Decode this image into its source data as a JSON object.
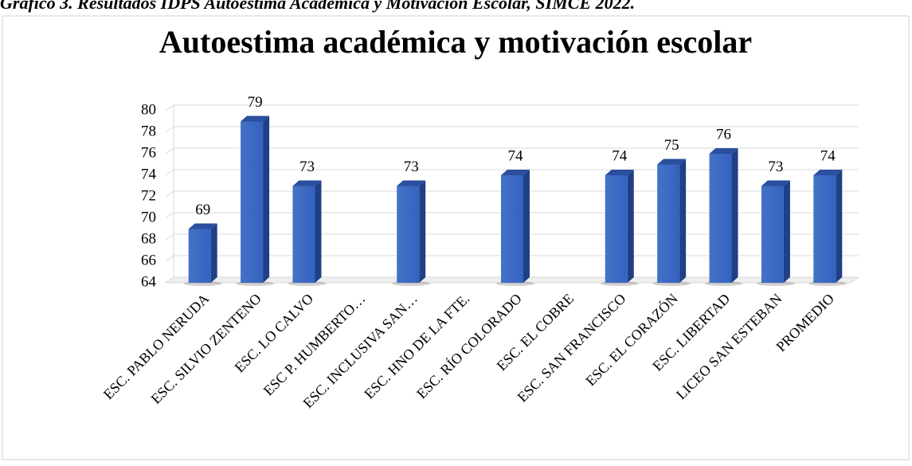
{
  "caption": "Gráfico 3. Resultados IDPS Autoestima Académica y Motivación Escolar, SIMCE 2022.",
  "chart_data": {
    "type": "bar3d",
    "title": "Autoestima académica y motivación escolar",
    "categories": [
      "ESC. PABLO NERUDA",
      "ESC. SILVIO ZENTENO",
      "ESC. LO CALVO",
      "ESC P. HUMBERTO…",
      "ESC. INCLUSIVA SAN…",
      "ESC. HNO DE LA FTE.",
      "ESC. RÍO COLORADO",
      "ESC. EL COBRE",
      "ESC. SAN FRANCISCO",
      "ESC. EL CORAZÓN",
      "ESC. LIBERTAD",
      "LICEO SAN ESTEBAN",
      "PROMEDIO"
    ],
    "values": [
      69,
      79,
      73,
      null,
      73,
      null,
      74,
      null,
      74,
      75,
      76,
      73,
      74
    ],
    "color": "#4472c4",
    "ylim": [
      64,
      80
    ],
    "yticks": [
      64,
      66,
      68,
      70,
      72,
      74,
      76,
      78,
      80
    ],
    "grid": true
  }
}
